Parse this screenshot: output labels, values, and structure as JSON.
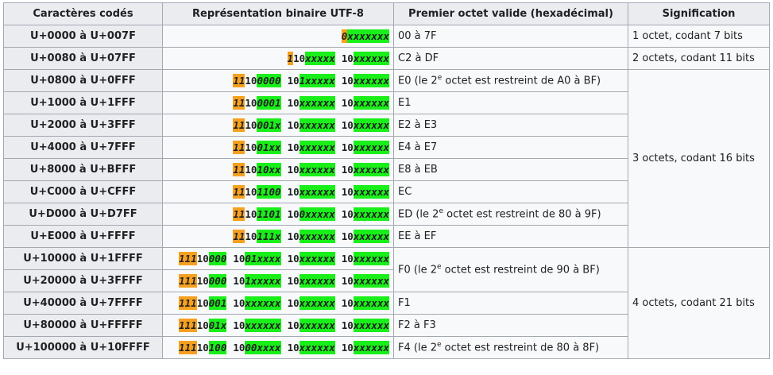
{
  "headers": {
    "col1": "Caractères codés",
    "col2": "Représentation binaire UTF-8",
    "col3": "Premier octet valide (hexadécimal)",
    "col4": "Signification"
  },
  "rows": [
    {
      "range": "U+0000 à U+007F",
      "first": "00 à 7F",
      "first_pre": "",
      "first_sup": "",
      "first_post": ""
    },
    {
      "range": "U+0080 à U+07FF",
      "first": "C2 à DF",
      "first_pre": "",
      "first_sup": "",
      "first_post": ""
    },
    {
      "range": "U+0800 à U+0FFF",
      "first": "",
      "first_pre": "E0 (le 2",
      "first_sup": "e",
      "first_post": " octet est restreint de A0 à BF)"
    },
    {
      "range": "U+1000 à U+1FFF",
      "first": "E1",
      "first_pre": "",
      "first_sup": "",
      "first_post": ""
    },
    {
      "range": "U+2000 à U+3FFF",
      "first": "E2 à E3",
      "first_pre": "",
      "first_sup": "",
      "first_post": ""
    },
    {
      "range": "U+4000 à U+7FFF",
      "first": "E4 à E7",
      "first_pre": "",
      "first_sup": "",
      "first_post": ""
    },
    {
      "range": "U+8000 à U+BFFF",
      "first": "E8 à EB",
      "first_pre": "",
      "first_sup": "",
      "first_post": ""
    },
    {
      "range": "U+C000 à U+CFFF",
      "first": "EC",
      "first_pre": "",
      "first_sup": "",
      "first_post": ""
    },
    {
      "range": "U+D000 à U+D7FF",
      "first": "",
      "first_pre": "ED (le 2",
      "first_sup": "e",
      "first_post": " octet est restreint de 80 à 9F)"
    },
    {
      "range": "U+E000 à U+FFFF",
      "first": "EE à EF",
      "first_pre": "",
      "first_sup": "",
      "first_post": ""
    },
    {
      "range": "U+10000 à U+1FFFF",
      "first": "",
      "first_pre": "F0 (le 2",
      "first_sup": "e",
      "first_post": " octet est restreint de 90 à BF)"
    },
    {
      "range": "U+20000 à U+3FFFF",
      "first": "",
      "first_pre": "",
      "first_sup": "",
      "first_post": ""
    },
    {
      "range": "U+40000 à U+7FFFF",
      "first": "F1",
      "first_pre": "",
      "first_sup": "",
      "first_post": ""
    },
    {
      "range": "U+80000 à U+FFFFF",
      "first": "F2 à F3",
      "first_pre": "",
      "first_sup": "",
      "first_post": ""
    },
    {
      "range": "U+100000 à U+10FFFF",
      "first": "",
      "first_pre": "F4 (le 2",
      "first_sup": "e",
      "first_post": " octet est restreint de 80 à 8F)"
    }
  ],
  "binary": [
    [
      {
        "pre": "0",
        "fixed": "",
        "pay": "xxxxxxx"
      }
    ],
    [
      {
        "pre": "1",
        "fixed": "10",
        "pay": "xxxxx"
      },
      {
        "pre": "",
        "fixed": "10",
        "pay": "xxxxxx"
      }
    ],
    [
      {
        "pre": "11",
        "fixed": "10",
        "pay": "0000"
      },
      {
        "pre": "",
        "fixed": "10",
        "pay": "1xxxxx"
      },
      {
        "pre": "",
        "fixed": "10",
        "pay": "xxxxxx"
      }
    ],
    [
      {
        "pre": "11",
        "fixed": "10",
        "pay": "0001"
      },
      {
        "pre": "",
        "fixed": "10",
        "pay": "xxxxxx"
      },
      {
        "pre": "",
        "fixed": "10",
        "pay": "xxxxxx"
      }
    ],
    [
      {
        "pre": "11",
        "fixed": "10",
        "pay": "001x"
      },
      {
        "pre": "",
        "fixed": "10",
        "pay": "xxxxxx"
      },
      {
        "pre": "",
        "fixed": "10",
        "pay": "xxxxxx"
      }
    ],
    [
      {
        "pre": "11",
        "fixed": "10",
        "pay": "01xx"
      },
      {
        "pre": "",
        "fixed": "10",
        "pay": "xxxxxx"
      },
      {
        "pre": "",
        "fixed": "10",
        "pay": "xxxxxx"
      }
    ],
    [
      {
        "pre": "11",
        "fixed": "10",
        "pay": "10xx"
      },
      {
        "pre": "",
        "fixed": "10",
        "pay": "xxxxxx"
      },
      {
        "pre": "",
        "fixed": "10",
        "pay": "xxxxxx"
      }
    ],
    [
      {
        "pre": "11",
        "fixed": "10",
        "pay": "1100"
      },
      {
        "pre": "",
        "fixed": "10",
        "pay": "xxxxxx"
      },
      {
        "pre": "",
        "fixed": "10",
        "pay": "xxxxxx"
      }
    ],
    [
      {
        "pre": "11",
        "fixed": "10",
        "pay": "1101"
      },
      {
        "pre": "",
        "fixed": "10",
        "pay": "0xxxxx"
      },
      {
        "pre": "",
        "fixed": "10",
        "pay": "xxxxxx"
      }
    ],
    [
      {
        "pre": "11",
        "fixed": "10",
        "pay": "111x"
      },
      {
        "pre": "",
        "fixed": "10",
        "pay": "xxxxxx"
      },
      {
        "pre": "",
        "fixed": "10",
        "pay": "xxxxxx"
      }
    ],
    [
      {
        "pre": "111",
        "fixed": "10",
        "pay": "000"
      },
      {
        "pre": "",
        "fixed": "10",
        "pay": "01xxxx"
      },
      {
        "pre": "",
        "fixed": "10",
        "pay": "xxxxxx"
      },
      {
        "pre": "",
        "fixed": "10",
        "pay": "xxxxxx"
      }
    ],
    [
      {
        "pre": "111",
        "fixed": "10",
        "pay": "000"
      },
      {
        "pre": "",
        "fixed": "10",
        "pay": "1xxxxx"
      },
      {
        "pre": "",
        "fixed": "10",
        "pay": "xxxxxx"
      },
      {
        "pre": "",
        "fixed": "10",
        "pay": "xxxxxx"
      }
    ],
    [
      {
        "pre": "111",
        "fixed": "10",
        "pay": "001"
      },
      {
        "pre": "",
        "fixed": "10",
        "pay": "xxxxxx"
      },
      {
        "pre": "",
        "fixed": "10",
        "pay": "xxxxxx"
      },
      {
        "pre": "",
        "fixed": "10",
        "pay": "xxxxxx"
      }
    ],
    [
      {
        "pre": "111",
        "fixed": "10",
        "pay": "01x"
      },
      {
        "pre": "",
        "fixed": "10",
        "pay": "xxxxxx"
      },
      {
        "pre": "",
        "fixed": "10",
        "pay": "xxxxxx"
      },
      {
        "pre": "",
        "fixed": "10",
        "pay": "xxxxxx"
      }
    ],
    [
      {
        "pre": "111",
        "fixed": "10",
        "pay": "100"
      },
      {
        "pre": "",
        "fixed": "10",
        "pay": "00xxxx"
      },
      {
        "pre": "",
        "fixed": "10",
        "pay": "xxxxxx"
      },
      {
        "pre": "",
        "fixed": "10",
        "pay": "xxxxxx"
      }
    ]
  ],
  "meanings": {
    "m1": "1 octet, codant 7 bits",
    "m2": "2 octets, codant 11 bits",
    "m3": "3 octets, codant 16 bits",
    "m4": "4 octets, codant 21 bits"
  },
  "colors": {
    "header_bg": "#eaecf0",
    "cell_bg": "#f8f9fa",
    "border": "#a2a9b1",
    "prefix_orange": "#f7a01f",
    "payload_green": "#19ef19"
  }
}
